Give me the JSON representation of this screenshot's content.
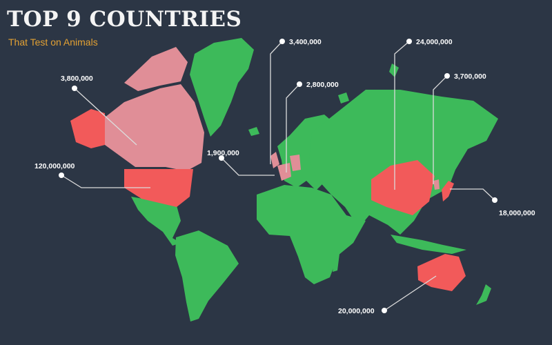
{
  "header": {
    "title": "TOP 9 COUNTRIES",
    "subtitle": "That Test on Animals"
  },
  "colors": {
    "background": "#2c3645",
    "land": "#3dba5a",
    "top_country": "#f25a5a",
    "other_country": "#e08e97",
    "leader": "#dcdcdc",
    "title": "#f4f4f4",
    "subtitle": "#e3a133"
  },
  "countries": [
    {
      "name": "Canada",
      "value": "3,800,000"
    },
    {
      "name": "USA",
      "value": "120,000,000"
    },
    {
      "name": "UK",
      "value": "1,900,000"
    },
    {
      "name": "France",
      "value": "3,400,000"
    },
    {
      "name": "Germany",
      "value": "2,800,000"
    },
    {
      "name": "China",
      "value": "24,000,000"
    },
    {
      "name": "South Korea",
      "value": "3,700,000"
    },
    {
      "name": "Japan",
      "value": "18,000,000"
    },
    {
      "name": "Australia",
      "value": "20,000,000"
    }
  ]
}
